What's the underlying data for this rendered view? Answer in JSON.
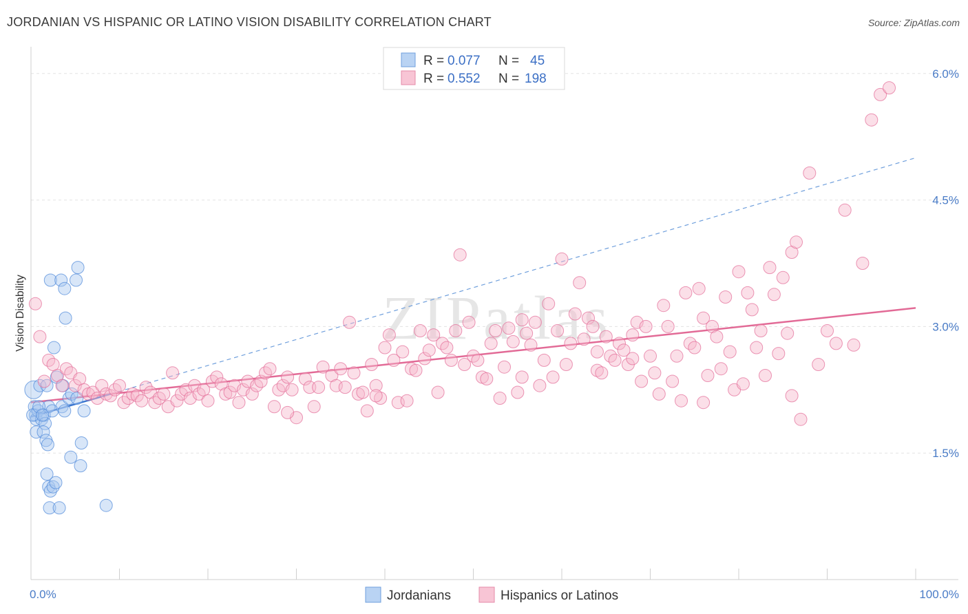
{
  "title": "JORDANIAN VS HISPANIC OR LATINO VISION DISABILITY CORRELATION CHART",
  "source": "Source: ZipAtlas.com",
  "watermark": "ZIPatlas",
  "chart_data": {
    "type": "scatter",
    "ylabel": "Vision Disability",
    "xlim": [
      0,
      100
    ],
    "ylim": [
      0.0,
      6.3
    ],
    "x_tick_labels": [
      "0.0%",
      "100.0%"
    ],
    "y_ticks": [
      1.5,
      3.0,
      4.5,
      6.0
    ],
    "y_tick_labels": [
      "1.5%",
      "3.0%",
      "4.5%",
      "6.0%"
    ],
    "legend": {
      "r_label": "R =",
      "n_label": "N =",
      "rows": [
        {
          "r": "0.077",
          "n": "45"
        },
        {
          "r": "0.552",
          "n": "198"
        }
      ]
    },
    "series": [
      {
        "name": "Jordanians",
        "color": "#4a86d8",
        "fill": "#a9c8f0",
        "trend": {
          "x": [
            0,
            9
          ],
          "y": [
            1.93,
            2.2
          ]
        },
        "trend_ext": {
          "x": [
            9,
            100
          ],
          "y": [
            2.2,
            5.0
          ]
        },
        "points": [
          [
            0.3,
            2.25
          ],
          [
            0.4,
            2.05
          ],
          [
            0.5,
            1.95
          ],
          [
            0.6,
            1.9
          ],
          [
            0.8,
            2.0
          ],
          [
            0.6,
            1.75
          ],
          [
            1.2,
            1.9
          ],
          [
            1.5,
            1.95
          ],
          [
            1.0,
            2.3
          ],
          [
            1.8,
            2.3
          ],
          [
            1.6,
            1.85
          ],
          [
            1.4,
            1.75
          ],
          [
            1.7,
            1.65
          ],
          [
            1.9,
            1.6
          ],
          [
            1.8,
            1.25
          ],
          [
            2.0,
            1.1
          ],
          [
            2.2,
            1.05
          ],
          [
            2.5,
            1.1
          ],
          [
            2.8,
            1.15
          ],
          [
            2.1,
            0.85
          ],
          [
            3.2,
            0.85
          ],
          [
            2.0,
            2.05
          ],
          [
            2.4,
            2.0
          ],
          [
            2.6,
            2.75
          ],
          [
            3.6,
            2.3
          ],
          [
            2.9,
            2.4
          ],
          [
            3.5,
            2.05
          ],
          [
            3.8,
            2.0
          ],
          [
            4.3,
            2.15
          ],
          [
            4.6,
            2.2
          ],
          [
            5.2,
            2.15
          ],
          [
            6.0,
            2.0
          ],
          [
            2.2,
            3.55
          ],
          [
            3.4,
            3.55
          ],
          [
            3.8,
            3.45
          ],
          [
            3.9,
            3.1
          ],
          [
            5.1,
            3.55
          ],
          [
            5.3,
            3.7
          ],
          [
            4.5,
            1.45
          ],
          [
            5.6,
            1.35
          ],
          [
            5.7,
            1.62
          ],
          [
            8.5,
            0.88
          ],
          [
            0.2,
            1.95
          ],
          [
            0.9,
            2.05
          ],
          [
            1.3,
            1.95
          ]
        ]
      },
      {
        "name": "Hispanics or Latinos",
        "color": "#e26a96",
        "fill": "#f6b8cc",
        "trend": {
          "x": [
            0,
            100
          ],
          "y": [
            2.1,
            3.22
          ]
        },
        "points": [
          [
            0.5,
            3.27
          ],
          [
            1.0,
            2.88
          ],
          [
            1.5,
            2.35
          ],
          [
            2.0,
            2.6
          ],
          [
            2.5,
            2.55
          ],
          [
            3.0,
            2.42
          ],
          [
            3.5,
            2.3
          ],
          [
            4.0,
            2.5
          ],
          [
            4.5,
            2.45
          ],
          [
            5.0,
            2.3
          ],
          [
            5.5,
            2.38
          ],
          [
            6.0,
            2.25
          ],
          [
            6.5,
            2.2
          ],
          [
            7.0,
            2.22
          ],
          [
            7.5,
            2.15
          ],
          [
            8.0,
            2.3
          ],
          [
            8.5,
            2.2
          ],
          [
            9.0,
            2.18
          ],
          [
            9.5,
            2.25
          ],
          [
            10.0,
            2.3
          ],
          [
            10.5,
            2.1
          ],
          [
            11.0,
            2.15
          ],
          [
            11.5,
            2.2
          ],
          [
            12.0,
            2.18
          ],
          [
            12.5,
            2.12
          ],
          [
            13.0,
            2.28
          ],
          [
            13.5,
            2.22
          ],
          [
            14.0,
            2.1
          ],
          [
            14.5,
            2.15
          ],
          [
            15.0,
            2.2
          ],
          [
            15.5,
            2.05
          ],
          [
            16.0,
            2.45
          ],
          [
            16.5,
            2.12
          ],
          [
            17.0,
            2.2
          ],
          [
            17.5,
            2.25
          ],
          [
            18.0,
            2.15
          ],
          [
            18.5,
            2.3
          ],
          [
            19.0,
            2.2
          ],
          [
            19.5,
            2.25
          ],
          [
            20.0,
            2.12
          ],
          [
            20.5,
            2.35
          ],
          [
            21.0,
            2.4
          ],
          [
            21.5,
            2.32
          ],
          [
            22.0,
            2.2
          ],
          [
            22.5,
            2.22
          ],
          [
            23.0,
            2.3
          ],
          [
            23.5,
            2.1
          ],
          [
            24.0,
            2.25
          ],
          [
            24.5,
            2.35
          ],
          [
            25.0,
            2.2
          ],
          [
            25.5,
            2.3
          ],
          [
            26.0,
            2.35
          ],
          [
            26.5,
            2.45
          ],
          [
            27.0,
            2.5
          ],
          [
            27.5,
            2.05
          ],
          [
            28.0,
            2.25
          ],
          [
            28.5,
            2.3
          ],
          [
            29.0,
            2.4
          ],
          [
            29.5,
            2.25
          ],
          [
            30.0,
            1.92
          ],
          [
            31.0,
            2.38
          ],
          [
            31.5,
            2.28
          ],
          [
            32.0,
            2.05
          ],
          [
            32.5,
            2.28
          ],
          [
            33.0,
            2.52
          ],
          [
            34.0,
            2.42
          ],
          [
            34.5,
            2.3
          ],
          [
            35.0,
            2.5
          ],
          [
            35.5,
            2.28
          ],
          [
            36.0,
            3.05
          ],
          [
            36.5,
            2.45
          ],
          [
            37.0,
            2.2
          ],
          [
            37.5,
            2.22
          ],
          [
            38.0,
            2.0
          ],
          [
            38.5,
            2.55
          ],
          [
            39.0,
            2.3
          ],
          [
            39.5,
            2.15
          ],
          [
            40.0,
            2.75
          ],
          [
            40.5,
            2.9
          ],
          [
            41.0,
            2.6
          ],
          [
            41.5,
            2.1
          ],
          [
            42.0,
            2.7
          ],
          [
            42.5,
            2.12
          ],
          [
            43.0,
            2.5
          ],
          [
            43.5,
            2.48
          ],
          [
            44.0,
            2.95
          ],
          [
            44.5,
            2.62
          ],
          [
            45.0,
            2.72
          ],
          [
            45.5,
            2.9
          ],
          [
            46.0,
            2.22
          ],
          [
            46.5,
            2.8
          ],
          [
            47.0,
            2.75
          ],
          [
            47.5,
            2.6
          ],
          [
            48.0,
            2.95
          ],
          [
            48.5,
            3.85
          ],
          [
            49.0,
            2.55
          ],
          [
            49.5,
            3.05
          ],
          [
            50.0,
            2.65
          ],
          [
            50.5,
            2.6
          ],
          [
            51.0,
            2.4
          ],
          [
            51.5,
            2.38
          ],
          [
            52.0,
            2.8
          ],
          [
            52.5,
            2.95
          ],
          [
            53.0,
            2.15
          ],
          [
            53.5,
            2.52
          ],
          [
            54.0,
            2.98
          ],
          [
            54.5,
            2.82
          ],
          [
            55.0,
            2.22
          ],
          [
            55.5,
            3.08
          ],
          [
            56.0,
            2.92
          ],
          [
            56.5,
            2.78
          ],
          [
            57.0,
            3.05
          ],
          [
            57.5,
            2.3
          ],
          [
            58.0,
            2.6
          ],
          [
            58.5,
            3.27
          ],
          [
            59.0,
            2.4
          ],
          [
            59.5,
            2.95
          ],
          [
            60.0,
            3.8
          ],
          [
            60.5,
            2.55
          ],
          [
            61.0,
            2.8
          ],
          [
            61.5,
            3.15
          ],
          [
            62.0,
            3.52
          ],
          [
            62.5,
            2.85
          ],
          [
            63.0,
            3.1
          ],
          [
            63.5,
            3.0
          ],
          [
            64.0,
            2.48
          ],
          [
            64.5,
            2.45
          ],
          [
            65.0,
            2.88
          ],
          [
            65.5,
            2.65
          ],
          [
            66.0,
            2.6
          ],
          [
            66.5,
            2.8
          ],
          [
            67.0,
            2.72
          ],
          [
            67.5,
            2.55
          ],
          [
            68.0,
            2.9
          ],
          [
            68.5,
            3.05
          ],
          [
            69.0,
            2.35
          ],
          [
            69.5,
            3.0
          ],
          [
            70.0,
            2.65
          ],
          [
            70.5,
            2.45
          ],
          [
            71.0,
            2.2
          ],
          [
            71.5,
            3.25
          ],
          [
            72.0,
            3.0
          ],
          [
            72.5,
            2.35
          ],
          [
            73.0,
            2.65
          ],
          [
            73.5,
            2.12
          ],
          [
            74.0,
            3.4
          ],
          [
            74.5,
            2.8
          ],
          [
            75.0,
            2.75
          ],
          [
            75.5,
            3.45
          ],
          [
            76.0,
            3.1
          ],
          [
            76.5,
            2.42
          ],
          [
            77.0,
            3.0
          ],
          [
            77.5,
            2.88
          ],
          [
            78.0,
            2.5
          ],
          [
            78.5,
            3.35
          ],
          [
            79.0,
            2.7
          ],
          [
            79.5,
            2.25
          ],
          [
            80.0,
            3.65
          ],
          [
            80.5,
            2.32
          ],
          [
            81.0,
            3.4
          ],
          [
            81.5,
            3.2
          ],
          [
            82.0,
            2.75
          ],
          [
            82.5,
            2.95
          ],
          [
            83.0,
            2.42
          ],
          [
            83.5,
            3.7
          ],
          [
            84.0,
            3.38
          ],
          [
            84.5,
            2.68
          ],
          [
            85.0,
            3.58
          ],
          [
            85.5,
            2.92
          ],
          [
            86.0,
            3.88
          ],
          [
            86.5,
            4.0
          ],
          [
            87.0,
            1.9
          ],
          [
            88.0,
            4.82
          ],
          [
            89.0,
            2.55
          ],
          [
            90.0,
            2.95
          ],
          [
            91.0,
            2.8
          ],
          [
            92.0,
            4.38
          ],
          [
            93.0,
            2.78
          ],
          [
            94.0,
            3.75
          ],
          [
            95.0,
            5.45
          ],
          [
            96.0,
            5.75
          ],
          [
            97.0,
            5.83
          ],
          [
            76.0,
            2.1
          ],
          [
            68.0,
            2.62
          ],
          [
            64.0,
            2.7
          ],
          [
            86.0,
            2.18
          ],
          [
            55.5,
            2.4
          ],
          [
            39.0,
            2.18
          ],
          [
            29.0,
            1.98
          ]
        ]
      }
    ]
  }
}
